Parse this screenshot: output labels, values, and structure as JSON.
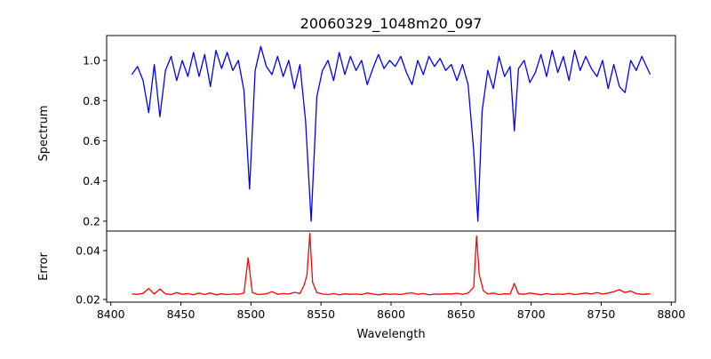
{
  "chart_data": [
    {
      "type": "line",
      "title": "20060329_1048m20_097",
      "xlabel": "",
      "ylabel": "Spectrum",
      "xlim": [
        8397,
        8803
      ],
      "ylim": [
        0.151,
        1.124
      ],
      "yticks": [
        0.2,
        0.4,
        0.6,
        0.8,
        1.0
      ],
      "ytick_labels": [
        "0.2",
        "0.4",
        "0.6",
        "0.8",
        "1.0"
      ],
      "series": [
        {
          "name": "Spectrum",
          "color": "#0000ff",
          "x": [
            8415,
            8419,
            8423,
            8427,
            8431,
            8435,
            8439,
            8443,
            8447,
            8451,
            8455,
            8459,
            8463,
            8467,
            8471,
            8475,
            8479,
            8483,
            8487,
            8491,
            8495,
            8499,
            8503,
            8507,
            8511,
            8515,
            8519,
            8523,
            8527,
            8531,
            8535,
            8539,
            8543,
            8547,
            8551,
            8555,
            8559,
            8563,
            8567,
            8571,
            8575,
            8579,
            8583,
            8587,
            8591,
            8595,
            8599,
            8603,
            8607,
            8611,
            8615,
            8619,
            8623,
            8627,
            8631,
            8635,
            8639,
            8643,
            8647,
            8651,
            8655,
            8659,
            8662,
            8665,
            8669,
            8673,
            8677,
            8681,
            8685,
            8688,
            8691,
            8695,
            8699,
            8703,
            8707,
            8711,
            8715,
            8719,
            8723,
            8727,
            8731,
            8735,
            8739,
            8743,
            8747,
            8751,
            8755,
            8759,
            8763,
            8767,
            8771,
            8775,
            8779,
            8783,
            8785
          ],
          "y": [
            0.93,
            0.97,
            0.9,
            0.74,
            0.98,
            0.72,
            0.95,
            1.02,
            0.9,
            1.0,
            0.92,
            1.04,
            0.92,
            1.03,
            0.87,
            1.05,
            0.96,
            1.04,
            0.95,
            1.0,
            0.85,
            0.36,
            0.95,
            1.07,
            0.97,
            0.93,
            1.02,
            0.92,
            1.0,
            0.86,
            0.98,
            0.7,
            0.2,
            0.82,
            0.95,
            1.0,
            0.9,
            1.04,
            0.93,
            1.02,
            0.95,
            1.0,
            0.88,
            0.96,
            1.03,
            0.96,
            1.0,
            0.97,
            1.02,
            0.94,
            0.88,
            1.0,
            0.93,
            1.02,
            0.97,
            1.01,
            0.95,
            0.98,
            0.9,
            0.98,
            0.88,
            0.55,
            0.2,
            0.75,
            0.95,
            0.86,
            1.02,
            0.92,
            0.97,
            0.65,
            0.96,
            1.0,
            0.89,
            0.94,
            1.03,
            0.92,
            1.05,
            0.94,
            1.02,
            0.9,
            1.05,
            0.95,
            1.02,
            0.96,
            0.92,
            1.0,
            0.86,
            0.98,
            0.87,
            0.84,
            1.0,
            0.95,
            1.02,
            0.96,
            0.93
          ]
        }
      ]
    },
    {
      "type": "line",
      "title": "",
      "xlabel": "Wavelength",
      "ylabel": "Error",
      "xlim": [
        8397,
        8803
      ],
      "ylim": [
        0.0189,
        0.048
      ],
      "yticks": [
        0.02,
        0.04
      ],
      "ytick_labels": [
        "0.02",
        "0.04"
      ],
      "xticks": [
        8400,
        8450,
        8500,
        8550,
        8600,
        8650,
        8700,
        8750,
        8800
      ],
      "xtick_labels": [
        "8400",
        "8450",
        "8500",
        "8550",
        "8600",
        "8650",
        "8700",
        "8750",
        "8800"
      ],
      "series": [
        {
          "name": "Error",
          "color": "#ff0000",
          "x": [
            8415,
            8419,
            8423,
            8427,
            8431,
            8435,
            8439,
            8443,
            8447,
            8451,
            8455,
            8459,
            8463,
            8467,
            8471,
            8475,
            8479,
            8483,
            8487,
            8491,
            8495,
            8498,
            8501,
            8505,
            8511,
            8515,
            8519,
            8523,
            8527,
            8531,
            8535,
            8538,
            8540,
            8542,
            8544,
            8547,
            8551,
            8555,
            8559,
            8563,
            8567,
            8571,
            8575,
            8579,
            8583,
            8587,
            8591,
            8595,
            8599,
            8603,
            8607,
            8611,
            8615,
            8619,
            8623,
            8627,
            8631,
            8635,
            8639,
            8643,
            8647,
            8651,
            8655,
            8659,
            8661,
            8663,
            8666,
            8669,
            8673,
            8677,
            8681,
            8685,
            8688,
            8691,
            8695,
            8699,
            8703,
            8707,
            8711,
            8715,
            8719,
            8723,
            8727,
            8731,
            8735,
            8739,
            8743,
            8747,
            8751,
            8755,
            8759,
            8763,
            8767,
            8771,
            8775,
            8779,
            8785
          ],
          "y": [
            0.0222,
            0.0221,
            0.0225,
            0.0245,
            0.0222,
            0.0243,
            0.0223,
            0.022,
            0.0228,
            0.0221,
            0.0224,
            0.0219,
            0.0226,
            0.022,
            0.0227,
            0.0219,
            0.0223,
            0.022,
            0.0222,
            0.0221,
            0.0226,
            0.037,
            0.0228,
            0.022,
            0.0223,
            0.0232,
            0.0221,
            0.0224,
            0.0222,
            0.0229,
            0.0224,
            0.026,
            0.03,
            0.047,
            0.027,
            0.0228,
            0.0222,
            0.022,
            0.0224,
            0.0219,
            0.0223,
            0.0221,
            0.0222,
            0.022,
            0.0226,
            0.0222,
            0.0219,
            0.0223,
            0.0221,
            0.0222,
            0.022,
            0.0225,
            0.0227,
            0.0221,
            0.0224,
            0.0219,
            0.0222,
            0.0221,
            0.0223,
            0.0222,
            0.0225,
            0.0221,
            0.0226,
            0.025,
            0.046,
            0.03,
            0.0235,
            0.0222,
            0.0226,
            0.022,
            0.0223,
            0.0222,
            0.0265,
            0.0223,
            0.0221,
            0.0226,
            0.0223,
            0.0219,
            0.0224,
            0.022,
            0.0222,
            0.0221,
            0.0225,
            0.022,
            0.0223,
            0.0226,
            0.0222,
            0.0228,
            0.0222,
            0.0226,
            0.0232,
            0.024,
            0.0228,
            0.0235,
            0.0224,
            0.0221,
            0.0223
          ]
        }
      ]
    }
  ]
}
